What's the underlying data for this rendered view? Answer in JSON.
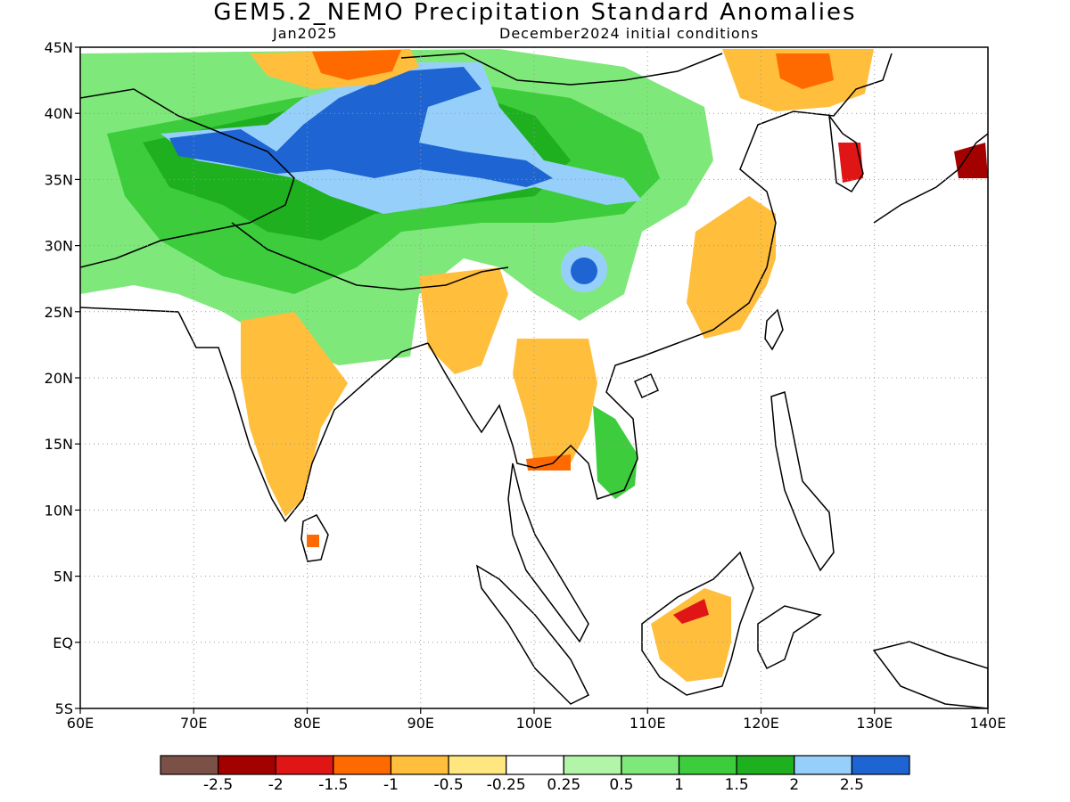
{
  "title": "GEM5.2_NEMO Precipitation Standard Anomalies",
  "subtitle_left": "Jan2025",
  "subtitle_right": "December2024 initial conditions",
  "map": {
    "lon_range": [
      60,
      140
    ],
    "lat_range": [
      -5,
      45
    ],
    "lon_ticks": [
      {
        "value": 60,
        "label": "60E"
      },
      {
        "value": 70,
        "label": "70E"
      },
      {
        "value": 80,
        "label": "80E"
      },
      {
        "value": 90,
        "label": "90E"
      },
      {
        "value": 100,
        "label": "100E"
      },
      {
        "value": 110,
        "label": "110E"
      },
      {
        "value": 120,
        "label": "120E"
      },
      {
        "value": 130,
        "label": "130E"
      },
      {
        "value": 140,
        "label": "140E"
      }
    ],
    "lat_ticks": [
      {
        "value": 45,
        "label": "45N"
      },
      {
        "value": 40,
        "label": "40N"
      },
      {
        "value": 35,
        "label": "35N"
      },
      {
        "value": 30,
        "label": "30N"
      },
      {
        "value": 25,
        "label": "25N"
      },
      {
        "value": 20,
        "label": "20N"
      },
      {
        "value": 15,
        "label": "15N"
      },
      {
        "value": 10,
        "label": "10N"
      },
      {
        "value": 5,
        "label": "5N"
      },
      {
        "value": 0,
        "label": "EQ"
      },
      {
        "value": -5,
        "label": "5S"
      }
    ],
    "gridlines": "dotted"
  },
  "colorbar": {
    "colors": [
      "#7b5147",
      "#a30000",
      "#e01515",
      "#ff6a00",
      "#ffbe3c",
      "#ffe680",
      "#ffffff",
      "#b3f5a8",
      "#7fe87a",
      "#3ccc3c",
      "#1eb01e",
      "#96d0fa",
      "#1e64d2"
    ],
    "labels": [
      "-2.5",
      "-2",
      "-1.5",
      "-1",
      "-0.5",
      "-0.25",
      "0.25",
      "0.5",
      "1",
      "1.5",
      "2",
      "2.5"
    ]
  }
}
